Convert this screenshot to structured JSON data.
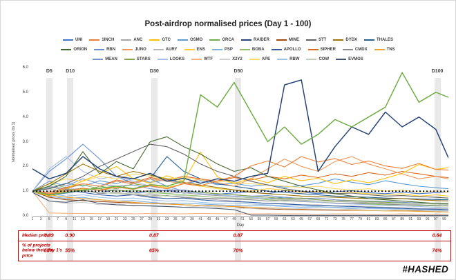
{
  "palette": {
    "table_red": "#C00000",
    "band_gray": "#E9E9E9"
  },
  "legend_rows": [
    [
      "UNI",
      "1INCH",
      "ANC",
      "GTC",
      "OSMO",
      "ORCA",
      "RAIDER",
      "MINE",
      "STT",
      "DYDX",
      "THALES"
    ],
    [
      "ORION",
      "RBN",
      "JUNO",
      "AURY",
      "ENS",
      "PSP",
      "BOBA",
      "APOLLO",
      "SIPHER",
      "CMDX",
      "TNS"
    ],
    [
      "MEAN",
      "STARS",
      "LOOKS",
      "WTF",
      "X2Y2",
      "APE",
      "RBW",
      "COW",
      "EVMOS"
    ]
  ],
  "chart_data": {
    "type": "line",
    "title": "Post-airdrop normalised prices (Day 1 - 100)",
    "xlabel": "Day",
    "ylabel": "Normalised prices (to 1)",
    "ylim": [
      0,
      6
    ],
    "grid": false,
    "legend_position": "top",
    "y_ticks": [
      "6.0",
      "5.0",
      "4.0",
      "3.0",
      "2.0",
      "1.0",
      "0.0"
    ],
    "x_tick_days": [
      1,
      3,
      5,
      7,
      9,
      11,
      13,
      15,
      17,
      19,
      21,
      23,
      25,
      27,
      29,
      31,
      33,
      35,
      37,
      39,
      41,
      43,
      45,
      47,
      49,
      51,
      53,
      55,
      57,
      59,
      61,
      63,
      65,
      67,
      69,
      71,
      73,
      75,
      77,
      79,
      81,
      83,
      85,
      87,
      89,
      91,
      93,
      95,
      97,
      99
    ],
    "reference_line": 1.0,
    "event_markers": [
      {
        "label": "D5",
        "day": 5
      },
      {
        "label": "D10",
        "day": 10
      },
      {
        "label": "D30",
        "day": 30
      },
      {
        "label": "D50",
        "day": 50
      },
      {
        "label": "D100",
        "day": 100
      }
    ],
    "x": [
      1,
      5,
      9,
      13,
      17,
      21,
      25,
      29,
      33,
      37,
      41,
      45,
      49,
      53,
      57,
      61,
      65,
      69,
      73,
      77,
      81,
      85,
      89,
      93,
      97,
      100
    ],
    "series": [
      {
        "name": "UNI",
        "color": "#4472C4",
        "values": [
          1.0,
          0.82,
          0.92,
          1.02,
          0.94,
          1.06,
          0.92,
          0.98,
          1.04,
          0.92,
          0.97,
          0.88,
          0.93,
          0.97,
          0.9,
          1.02,
          0.96,
          0.9,
          0.97,
          1.02,
          0.94,
          0.9,
          0.96,
          0.9,
          0.94,
          0.96
        ]
      },
      {
        "name": "ANC",
        "color": "#A5A5A5",
        "values": [
          1.0,
          1.16,
          1.06,
          1.12,
          1.02,
          1.06,
          0.96,
          1.02,
          0.92,
          0.94,
          0.86,
          0.82,
          0.78,
          0.74,
          0.7,
          0.68,
          0.64,
          0.6,
          0.58,
          0.56,
          0.54,
          0.52,
          0.5,
          0.5,
          0.48,
          0.47
        ]
      },
      {
        "name": "OSMO",
        "color": "#5B9BD5",
        "values": [
          1.0,
          1.12,
          1.32,
          1.2,
          1.42,
          1.3,
          1.52,
          1.36,
          1.46,
          1.3,
          1.42,
          1.26,
          1.32,
          1.2,
          1.26,
          1.16,
          1.22,
          1.32,
          1.5,
          1.36,
          1.26,
          1.42,
          1.3,
          1.2,
          1.14,
          1.1
        ]
      },
      {
        "name": "MINE",
        "color": "#9E480E",
        "values": [
          1.0,
          0.75,
          0.65,
          0.62,
          0.58,
          0.55,
          0.52,
          0.5,
          0.48,
          0.45,
          0.42,
          0.4,
          0.38,
          0.3,
          0.28,
          0.26,
          0.25,
          0.24,
          0.23,
          0.22,
          0.22,
          0.21,
          0.2,
          0.2,
          0.2,
          0.2
        ]
      },
      {
        "name": "THALES",
        "color": "#255E91",
        "values": [
          1.0,
          1.2,
          1.1,
          1.3,
          1.2,
          1.4,
          1.3,
          1.5,
          2.4,
          1.8,
          1.5,
          1.3,
          1.2,
          1.1,
          1.0,
          0.95,
          0.9,
          0.85,
          0.8,
          0.78,
          0.75,
          0.72,
          0.7,
          0.68,
          0.66,
          0.65
        ]
      },
      {
        "name": "RBN",
        "color": "#698ED0",
        "values": [
          1.0,
          1.8,
          2.3,
          2.9,
          2.3,
          1.6,
          1.3,
          1.5,
          1.2,
          1.0,
          0.9,
          0.85,
          0.8,
          0.75,
          0.7,
          0.75,
          0.7,
          0.65,
          0.6,
          0.62,
          0.58,
          0.55,
          0.5,
          0.52,
          0.48,
          0.45
        ]
      },
      {
        "name": "AURY",
        "color": "#B7B7B7",
        "values": [
          1.0,
          1.2,
          1.1,
          1.0,
          0.95,
          0.9,
          0.85,
          0.9,
          0.8,
          0.75,
          0.7,
          0.65,
          0.6,
          0.55,
          0.5,
          0.5,
          0.45,
          0.45,
          0.4,
          0.4,
          0.38,
          0.35,
          0.35,
          0.3,
          0.3,
          0.3
        ]
      },
      {
        "name": "ENS",
        "color": "#FFCD33",
        "values": [
          1.0,
          0.85,
          0.95,
          1.1,
          1.05,
          1.2,
          1.1,
          1.25,
          1.15,
          1.3,
          1.2,
          1.1,
          1.05,
          1.0,
          1.1,
          1.05,
          0.95,
          1.0,
          0.9,
          0.95,
          0.9,
          0.85,
          0.9,
          0.8,
          0.85,
          0.8
        ]
      },
      {
        "name": "PSP",
        "color": "#7CAFDD",
        "values": [
          1.0,
          0.8,
          0.7,
          0.75,
          0.65,
          0.6,
          0.62,
          0.55,
          0.5,
          0.52,
          0.48,
          0.45,
          0.42,
          0.4,
          0.42,
          0.38,
          0.35,
          0.36,
          0.33,
          0.3,
          0.32,
          0.3,
          0.28,
          0.27,
          0.25,
          0.25
        ]
      },
      {
        "name": "BOBA",
        "color": "#8CC168",
        "values": [
          1.0,
          1.3,
          1.15,
          1.25,
          1.1,
          1.0,
          1.05,
          0.95,
          0.9,
          0.85,
          0.8,
          0.75,
          0.7,
          0.72,
          0.65,
          0.6,
          0.62,
          0.55,
          0.52,
          0.5,
          0.48,
          0.45,
          0.45,
          0.42,
          0.4,
          0.4
        ]
      },
      {
        "name": "APOLLO",
        "color": "#335AA1",
        "values": [
          1.0,
          0.9,
          1.05,
          0.95,
          0.85,
          0.8,
          0.85,
          0.75,
          0.7,
          0.72,
          0.65,
          0.6,
          0.58,
          0.55,
          0.5,
          0.48,
          0.45,
          0.42,
          0.4,
          0.38,
          0.35,
          0.33,
          0.3,
          0.28,
          0.27,
          0.25
        ]
      },
      {
        "name": "SIPHER",
        "color": "#DB6A1C",
        "values": [
          1.0,
          0.95,
          1.15,
          1.3,
          1.2,
          1.45,
          1.35,
          1.55,
          1.45,
          1.6,
          1.5,
          1.4,
          1.55,
          1.45,
          1.6,
          1.5,
          1.65,
          1.55,
          1.7,
          1.6,
          1.75,
          1.65,
          1.8,
          1.7,
          1.6,
          1.55
        ]
      },
      {
        "name": "CMDX",
        "color": "#8C8C8C",
        "values": [
          1.0,
          1.1,
          0.95,
          1.05,
          0.9,
          0.95,
          0.85,
          0.8,
          0.82,
          0.75,
          0.7,
          0.72,
          0.68,
          0.65,
          0.6,
          0.62,
          0.58,
          0.55,
          0.52,
          0.5,
          0.52,
          0.48,
          0.45,
          0.45,
          0.42,
          0.4
        ]
      },
      {
        "name": "TNS",
        "color": "#EDA52F",
        "values": [
          1.0,
          0.85,
          0.75,
          0.7,
          0.65,
          0.6,
          0.55,
          0.5,
          0.48,
          0.45,
          0.42,
          0.4,
          0.38,
          0.35,
          0.33,
          0.3,
          0.28,
          0.27,
          0.25,
          0.23,
          0.22,
          0.2,
          0.2,
          0.18,
          0.17,
          0.15
        ]
      },
      {
        "name": "MEAN",
        "color": "#7593C9",
        "values": [
          1.0,
          1.4,
          1.2,
          1.5,
          1.3,
          1.2,
          1.25,
          1.1,
          1.0,
          1.05,
          0.95,
          0.9,
          0.85,
          0.8,
          0.82,
          0.75,
          0.7,
          0.72,
          0.65,
          0.62,
          0.6,
          0.58,
          0.55,
          0.52,
          0.5,
          0.5
        ]
      },
      {
        "name": "STARS",
        "color": "#86A44A",
        "values": [
          1.0,
          0.9,
          1.1,
          1.0,
          1.2,
          1.1,
          1.3,
          1.2,
          1.1,
          1.0,
          0.95,
          0.9,
          0.85,
          0.8,
          0.75,
          0.7,
          0.72,
          0.65,
          0.6,
          0.62,
          0.58,
          0.55,
          0.52,
          0.5,
          0.48,
          0.45
        ]
      },
      {
        "name": "LOOKS",
        "color": "#A8BCE8",
        "values": [
          1.0,
          1.9,
          2.4,
          1.8,
          1.5,
          1.6,
          1.4,
          1.2,
          1.1,
          1.0,
          0.9,
          0.85,
          0.8,
          0.75,
          0.7,
          0.65,
          0.6,
          0.55,
          0.5,
          0.48,
          0.45,
          0.42,
          0.4,
          0.38,
          0.35,
          0.33
        ]
      },
      {
        "name": "WTF",
        "color": "#F4B183",
        "values": [
          1.0,
          0.12,
          0.1,
          0.1,
          0.09,
          0.1,
          0.08,
          0.1,
          0.09,
          0.08,
          0.1,
          0.09,
          0.08,
          0.08,
          0.09,
          0.08,
          0.08,
          0.07,
          0.08,
          0.08,
          0.07,
          0.07,
          0.08,
          0.07,
          0.07,
          0.07
        ]
      },
      {
        "name": "X2Y2",
        "color": "#CFCFCF",
        "values": [
          1.0,
          0.6,
          0.5,
          0.55,
          0.45,
          0.5,
          0.4,
          0.42,
          0.38,
          0.35,
          0.4,
          0.35,
          0.32,
          0.3,
          0.32,
          0.28,
          0.3,
          0.27,
          0.25,
          0.27,
          0.24,
          0.22,
          0.25,
          0.22,
          0.2,
          0.2
        ]
      },
      {
        "name": "APE",
        "color": "#FFD966",
        "values": [
          1.0,
          1.3,
          1.5,
          1.4,
          1.6,
          1.5,
          1.7,
          1.6,
          1.5,
          1.55,
          1.45,
          1.4,
          1.35,
          1.3,
          1.25,
          1.2,
          1.15,
          1.2,
          1.1,
          1.05,
          1.1,
          1.0,
          1.05,
          0.95,
          1.0,
          0.95
        ]
      },
      {
        "name": "RBW",
        "color": "#9CC3E5",
        "values": [
          1.0,
          0.9,
          0.8,
          0.85,
          0.75,
          0.7,
          0.72,
          0.65,
          0.6,
          0.62,
          0.55,
          0.5,
          0.52,
          0.48,
          0.45,
          0.42,
          0.4,
          0.38,
          0.35,
          0.33,
          0.3,
          0.28,
          0.27,
          0.25,
          0.23,
          0.22
        ]
      },
      {
        "name": "COW",
        "color": "#BFCDB2",
        "values": [
          1.0,
          1.1,
          1.0,
          1.05,
          0.95,
          0.9,
          0.92,
          0.85,
          0.8,
          0.82,
          0.78,
          0.75,
          0.72,
          0.7,
          0.68,
          0.65,
          0.62,
          0.6,
          0.58,
          0.6,
          0.55,
          0.52,
          0.5,
          0.5,
          0.48,
          0.45
        ]
      },
      {
        "name": "EVMOS",
        "color": "#44546A",
        "values": [
          0.95,
          0.6,
          0.55,
          0.65,
          0.5,
          0.45,
          0.42,
          0.4,
          0.38,
          0.35,
          0.33,
          0.3,
          0.25,
          0.03,
          0.03,
          0.02,
          0.02,
          0.02,
          0.02,
          0.02,
          0.02,
          0.02,
          0.02,
          0.02,
          0.02,
          0.02
        ]
      },
      {
        "name": "DYDX",
        "color": "#997300",
        "values": [
          1.0,
          1.3,
          1.7,
          2.1,
          1.8,
          1.6,
          1.8,
          1.65,
          1.5,
          1.35,
          1.25,
          1.15,
          1.05,
          0.95,
          0.9,
          0.85,
          0.8,
          0.78,
          0.75,
          0.72,
          0.7,
          0.68,
          0.7,
          0.65,
          0.62,
          0.6
        ]
      },
      {
        "name": "GTC",
        "color": "#FFC000",
        "values": [
          1.0,
          0.8,
          1.1,
          1.42,
          1.7,
          2.0,
          1.5,
          1.32,
          1.62,
          1.4,
          2.58,
          1.58,
          1.3,
          1.52,
          1.34,
          1.6,
          1.42,
          1.52,
          1.3,
          1.46,
          1.34,
          1.52,
          1.72,
          2.08,
          1.88,
          1.95
        ]
      },
      {
        "name": "JUNO",
        "color": "#F1975A",
        "values": [
          1.0,
          0.9,
          1.1,
          1.3,
          1.2,
          1.4,
          1.3,
          1.5,
          1.4,
          1.3,
          1.5,
          1.35,
          1.2,
          1.5,
          1.9,
          2.3,
          2.0,
          1.8,
          2.2,
          2.4,
          2.1,
          1.9,
          1.7,
          1.5,
          1.6,
          1.5
        ]
      },
      {
        "name": "STT",
        "color": "#636363",
        "values": [
          1.0,
          1.1,
          1.3,
          1.6,
          2.0,
          2.3,
          2.6,
          2.9,
          2.8,
          2.5,
          2.1,
          1.8,
          1.6,
          1.4,
          1.25,
          1.1,
          1.0,
          0.95,
          0.9,
          0.92,
          0.85,
          0.8,
          0.82,
          0.78,
          0.75,
          0.72
        ]
      },
      {
        "name": "ORION",
        "color": "#43682B",
        "values": [
          1.0,
          1.2,
          1.6,
          2.6,
          1.7,
          2.2,
          1.9,
          3.0,
          3.2,
          2.8,
          2.5,
          2.1,
          1.8,
          1.95,
          1.6,
          1.4,
          1.2,
          1.05,
          0.9,
          0.8,
          0.7,
          0.65,
          0.6,
          0.55,
          0.5,
          0.5
        ]
      },
      {
        "name": "1INCH",
        "color": "#ED7D31",
        "values": [
          1.0,
          0.88,
          1.0,
          1.12,
          1.04,
          1.16,
          1.08,
          1.22,
          1.1,
          1.3,
          1.22,
          1.42,
          1.6,
          2.02,
          2.22,
          1.98,
          2.4,
          2.18,
          2.32,
          2.08,
          2.22,
          2.02,
          1.92,
          2.12,
          1.88,
          1.85
        ]
      },
      {
        "name": "RAIDER",
        "color": "#264478",
        "emphasis": true,
        "values": [
          1.9,
          1.5,
          1.72,
          2.4,
          1.9,
          1.6,
          1.5,
          1.72,
          1.4,
          1.52,
          1.32,
          1.5,
          1.4,
          1.6,
          1.72,
          5.3,
          5.5,
          1.8,
          2.8,
          3.6,
          3.3,
          4.2,
          3.6,
          4.0,
          3.5,
          2.35
        ]
      },
      {
        "name": "ORCA",
        "color": "#70AD47",
        "emphasis": true,
        "values": [
          1.0,
          0.85,
          0.95,
          1.05,
          1.12,
          1.2,
          1.1,
          1.26,
          1.2,
          1.4,
          4.9,
          4.4,
          5.4,
          4.2,
          3.0,
          3.6,
          2.9,
          3.3,
          3.9,
          3.6,
          4.0,
          4.4,
          5.8,
          4.6,
          5.0,
          4.8
        ]
      }
    ]
  },
  "summary_table": {
    "rows": [
      {
        "label": "Median price",
        "values": [
          "0.99",
          "0.90",
          "0.87",
          "0.87",
          "0.64"
        ]
      },
      {
        "label": "% of projects below their day 1's price",
        "values": [
          "55%",
          "55%",
          "65%",
          "70%",
          "74%"
        ]
      }
    ]
  },
  "footer": {
    "logo": "#HASHED"
  }
}
